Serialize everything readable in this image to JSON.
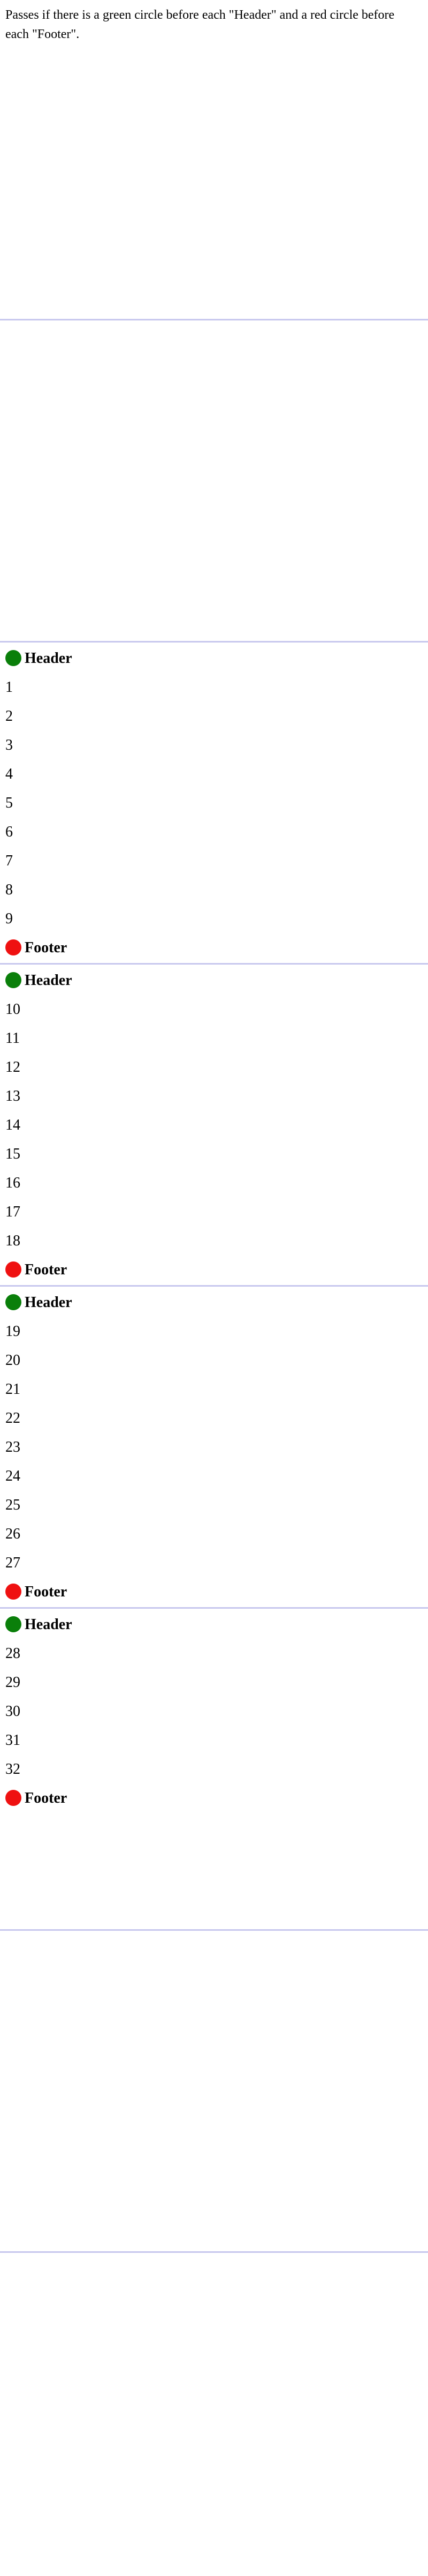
{
  "intro": {
    "text": "Passes if there is a green circle before each \"Header\" and a red circle before each \"Footer\"."
  },
  "colors": {
    "header_marker": "#0a7f0a",
    "footer_marker": "#ef1111",
    "page_rule": "#c8c8ee"
  },
  "sections": [
    {
      "header": "Header",
      "items": [
        "1",
        "2",
        "3",
        "4",
        "5",
        "6",
        "7",
        "8",
        "9"
      ],
      "footer": "Footer"
    },
    {
      "header": "Header",
      "items": [
        "10",
        "11",
        "12",
        "13",
        "14",
        "15",
        "16",
        "17",
        "18"
      ],
      "footer": "Footer"
    },
    {
      "header": "Header",
      "items": [
        "19",
        "20",
        "21",
        "22",
        "23",
        "24",
        "25",
        "26",
        "27"
      ],
      "footer": "Footer"
    },
    {
      "header": "Header",
      "items": [
        "28",
        "29",
        "30",
        "31",
        "32"
      ],
      "footer": "Footer"
    }
  ]
}
